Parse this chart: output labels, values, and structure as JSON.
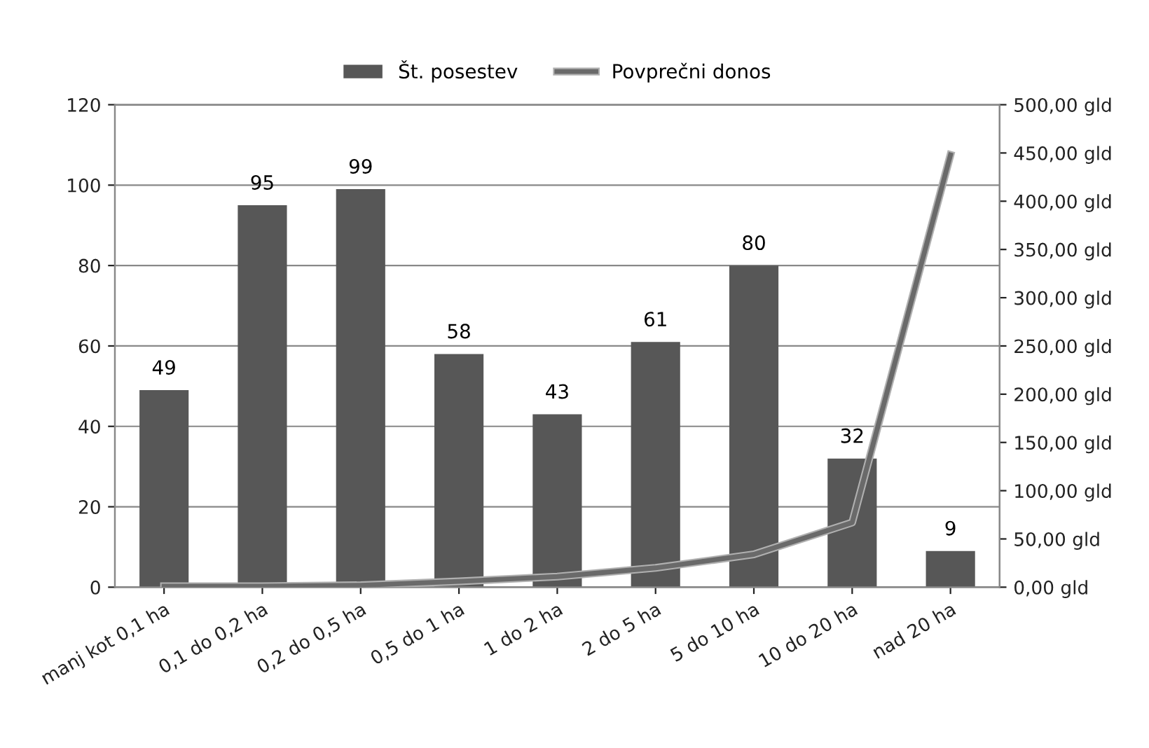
{
  "chart_data": {
    "type": "bar",
    "categories": [
      "manj kot 0,1 ha",
      "0,1 do 0,2 ha",
      "0,2 do 0,5 ha",
      "0,5 do 1 ha",
      "1 do 2 ha",
      "2 do 5 ha",
      "5 do 10 ha",
      "10 do 20 ha",
      "nad 20 ha"
    ],
    "series": [
      {
        "name": "Št. posestev",
        "color": "#575757",
        "values": [
          49,
          95,
          99,
          58,
          43,
          61,
          80,
          32,
          9
        ],
        "value_labels": [
          "49",
          "95",
          "99",
          "58",
          "43",
          "61",
          "80",
          "32",
          "9"
        ]
      },
      {
        "name": "Povprečni donos",
        "type": "line",
        "axis": "y2",
        "color": "#6a6a6a",
        "values": [
          1,
          1,
          2,
          6,
          11,
          20,
          34,
          67,
          448
        ]
      }
    ],
    "ylim": [
      0,
      120
    ],
    "yticks": [
      0,
      20,
      40,
      60,
      80,
      100,
      120
    ],
    "y2lim": [
      0,
      500
    ],
    "y2ticks": [
      {
        "value": 0,
        "label": "0,00 gld"
      },
      {
        "value": 50,
        "label": "50,00 gld"
      },
      {
        "value": 100,
        "label": "100,00 gld"
      },
      {
        "value": 150,
        "label": "150,00 gld"
      },
      {
        "value": 200,
        "label": "200,00 gld"
      },
      {
        "value": 250,
        "label": "250,00 gld"
      },
      {
        "value": 300,
        "label": "300,00 gld"
      },
      {
        "value": 350,
        "label": "350,00 gld"
      },
      {
        "value": 400,
        "label": "400,00 gld"
      },
      {
        "value": 450,
        "label": "450,00 gld"
      },
      {
        "value": 500,
        "label": "500,00 gld"
      }
    ],
    "grid": "y",
    "legend": "top",
    "marker": "none"
  }
}
